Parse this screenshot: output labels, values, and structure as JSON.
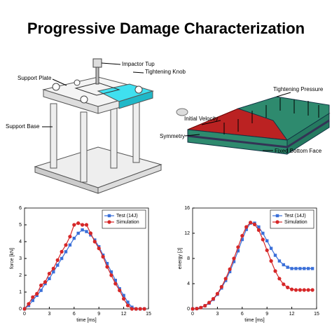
{
  "title": "Progressive Damage Characterization",
  "diagrams": [
    {
      "labels": [
        "Impactor Tup",
        "Support Plate",
        "Tightening Knob",
        "Support Base"
      ]
    },
    {
      "labels": [
        "Initial Velocity",
        "Tightening Pressure",
        "Symmetry",
        "Fixed Bottom Face"
      ]
    }
  ],
  "chart_data": [
    {
      "type": "line",
      "xlabel": "time [ms]",
      "ylabel": "force [kN]",
      "x": [
        0,
        0.5,
        1,
        1.5,
        2,
        2.5,
        3,
        3.5,
        4,
        4.5,
        5,
        5.5,
        6,
        6.5,
        7,
        7.5,
        8,
        8.5,
        9,
        9.5,
        10,
        10.5,
        11,
        11.5,
        12,
        12.5,
        13,
        13.5,
        14,
        14.5
      ],
      "series": [
        {
          "name": "Test (14J)",
          "color": "#3a6fd8",
          "marker": "square",
          "values": [
            0,
            0.2,
            0.5,
            0.8,
            1.1,
            1.5,
            1.8,
            2.2,
            2.6,
            3.0,
            3.4,
            3.8,
            4.2,
            4.5,
            4.7,
            4.6,
            4.4,
            4.1,
            3.7,
            3.2,
            2.7,
            2.2,
            1.7,
            1.2,
            0.8,
            0.4,
            0.1,
            0,
            0,
            0
          ]
        },
        {
          "name": "Simulation",
          "color": "#d62728",
          "marker": "circle",
          "values": [
            0,
            0.3,
            0.7,
            0.9,
            1.4,
            1.6,
            2.1,
            2.4,
            2.9,
            3.4,
            3.8,
            4.3,
            5.0,
            5.1,
            5.0,
            5.0,
            4.5,
            4.0,
            3.6,
            3.1,
            2.5,
            2.0,
            1.5,
            1.1,
            0.6,
            0.2,
            0,
            0,
            0,
            0
          ]
        }
      ],
      "xlim": [
        0,
        15
      ],
      "xticks": [
        0,
        3,
        6,
        9,
        12,
        15
      ],
      "ylim": [
        0,
        6
      ],
      "yticks": [
        0,
        1,
        2,
        3,
        4,
        5,
        6
      ],
      "grid": false,
      "legend": "upper-right"
    },
    {
      "type": "line",
      "xlabel": "time [ms]",
      "ylabel": "energy [J]",
      "x": [
        0,
        0.5,
        1,
        1.5,
        2,
        2.5,
        3,
        3.5,
        4,
        4.5,
        5,
        5.5,
        6,
        6.5,
        7,
        7.5,
        8,
        8.5,
        9,
        9.5,
        10,
        10.5,
        11,
        11.5,
        12,
        12.5,
        13,
        13.5,
        14,
        14.5
      ],
      "series": [
        {
          "name": "Test (14J)",
          "color": "#3a6fd8",
          "marker": "square",
          "values": [
            0,
            0.05,
            0.2,
            0.5,
            0.9,
            1.5,
            2.3,
            3.3,
            4.5,
            5.9,
            7.5,
            9.2,
            11,
            12.6,
            13.6,
            13.6,
            13.0,
            12.0,
            10.8,
            9.6,
            8.5,
            7.6,
            7.0,
            6.6,
            6.4,
            6.4,
            6.4,
            6.4,
            6.4,
            6.4
          ]
        },
        {
          "name": "Simulation",
          "color": "#d62728",
          "marker": "circle",
          "values": [
            0,
            0.05,
            0.2,
            0.5,
            1,
            1.6,
            2.4,
            3.5,
            4.8,
            6.3,
            8,
            9.8,
            11.6,
            13,
            13.7,
            13.4,
            12.5,
            11,
            9.3,
            7.6,
            6.0,
            4.8,
            3.9,
            3.4,
            3.1,
            3.0,
            3.0,
            3.0,
            3.0,
            3.0
          ]
        }
      ],
      "xlim": [
        0,
        15
      ],
      "xticks": [
        0,
        3,
        6,
        9,
        12,
        15
      ],
      "ylim": [
        0,
        16
      ],
      "yticks": [
        0,
        4,
        8,
        12,
        16
      ],
      "grid": false,
      "legend": "upper-right"
    }
  ]
}
